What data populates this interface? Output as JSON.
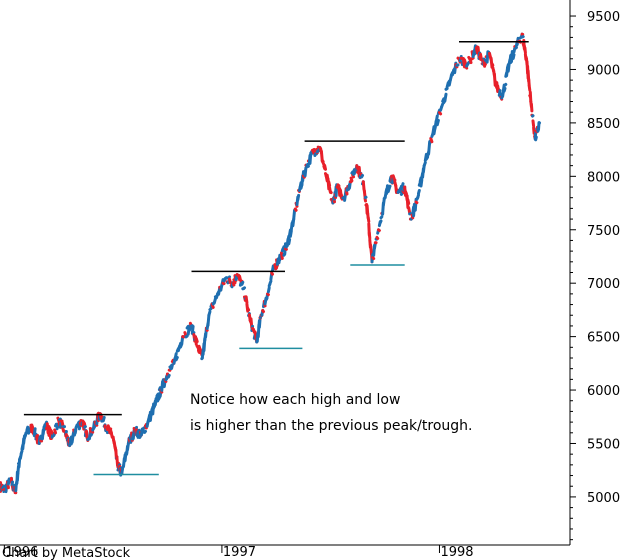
{
  "chart_data": {
    "type": "line",
    "title": "",
    "xlabel": "",
    "ylabel": "",
    "ylim": [
      4550,
      9650
    ],
    "y_ticks": [
      "9500",
      "9000",
      "8500",
      "8000",
      "7500",
      "7000",
      "6500",
      "6000",
      "5500",
      "5000"
    ],
    "y_tick_values": [
      9500,
      9000,
      8500,
      8000,
      7500,
      7000,
      6500,
      6000,
      5500,
      5000
    ],
    "x_ticks": [
      {
        "label": "1996",
        "t": 0.0
      },
      {
        "label": "1997",
        "t": 1.0
      },
      {
        "label": "1998",
        "t": 2.0
      }
    ],
    "xlim": [
      -0.02,
      2.6
    ],
    "legend": "none",
    "grid": false,
    "colors": {
      "up": "#1f6fb0",
      "down": "#e8202a",
      "levels_high": "#000000",
      "levels_low": "#1f8ea0"
    },
    "series": [
      {
        "points": [
          [
            -0.02,
            5100
          ],
          [
            0.0,
            5070
          ],
          [
            0.03,
            5150
          ],
          [
            0.05,
            5040
          ],
          [
            0.07,
            5350
          ],
          [
            0.1,
            5600
          ],
          [
            0.13,
            5650
          ],
          [
            0.16,
            5500
          ],
          [
            0.19,
            5680
          ],
          [
            0.22,
            5560
          ],
          [
            0.25,
            5720
          ],
          [
            0.28,
            5610
          ],
          [
            0.3,
            5480
          ],
          [
            0.33,
            5650
          ],
          [
            0.36,
            5710
          ],
          [
            0.38,
            5560
          ],
          [
            0.41,
            5640
          ],
          [
            0.44,
            5780
          ],
          [
            0.47,
            5650
          ],
          [
            0.5,
            5560
          ],
          [
            0.52,
            5300
          ],
          [
            0.54,
            5220
          ],
          [
            0.57,
            5500
          ],
          [
            0.6,
            5620
          ],
          [
            0.63,
            5580
          ],
          [
            0.66,
            5700
          ],
          [
            0.69,
            5850
          ],
          [
            0.72,
            6000
          ],
          [
            0.75,
            6150
          ],
          [
            0.78,
            6250
          ],
          [
            0.82,
            6500
          ],
          [
            0.86,
            6600
          ],
          [
            0.89,
            6400
          ],
          [
            0.91,
            6300
          ],
          [
            0.94,
            6700
          ],
          [
            0.98,
            6900
          ],
          [
            1.02,
            7050
          ],
          [
            1.05,
            7000
          ],
          [
            1.07,
            7080
          ],
          [
            1.1,
            6950
          ],
          [
            1.13,
            6650
          ],
          [
            1.16,
            6450
          ],
          [
            1.18,
            6700
          ],
          [
            1.21,
            6900
          ],
          [
            1.24,
            7150
          ],
          [
            1.27,
            7250
          ],
          [
            1.3,
            7350
          ],
          [
            1.33,
            7600
          ],
          [
            1.36,
            7900
          ],
          [
            1.39,
            8100
          ],
          [
            1.42,
            8230
          ],
          [
            1.45,
            8270
          ],
          [
            1.48,
            8000
          ],
          [
            1.51,
            7750
          ],
          [
            1.53,
            7900
          ],
          [
            1.56,
            7800
          ],
          [
            1.59,
            7950
          ],
          [
            1.62,
            8100
          ],
          [
            1.65,
            7950
          ],
          [
            1.67,
            7650
          ],
          [
            1.69,
            7200
          ],
          [
            1.72,
            7500
          ],
          [
            1.75,
            7800
          ],
          [
            1.78,
            8000
          ],
          [
            1.81,
            7850
          ],
          [
            1.84,
            7900
          ],
          [
            1.87,
            7600
          ],
          [
            1.9,
            7800
          ],
          [
            1.93,
            8100
          ],
          [
            1.97,
            8400
          ],
          [
            2.01,
            8650
          ],
          [
            2.05,
            8900
          ],
          [
            2.09,
            9100
          ],
          [
            2.13,
            9050
          ],
          [
            2.17,
            9200
          ],
          [
            2.2,
            9050
          ],
          [
            2.23,
            9150
          ],
          [
            2.26,
            8850
          ],
          [
            2.29,
            8750
          ],
          [
            2.32,
            9050
          ],
          [
            2.35,
            9200
          ],
          [
            2.38,
            9330
          ],
          [
            2.4,
            9100
          ],
          [
            2.42,
            8700
          ],
          [
            2.44,
            8350
          ],
          [
            2.46,
            8500
          ]
        ]
      }
    ],
    "levels": [
      {
        "kind": "high",
        "x0": 0.09,
        "x1": 0.54,
        "y": 5770
      },
      {
        "kind": "low",
        "x0": 0.41,
        "x1": 0.71,
        "y": 5210
      },
      {
        "kind": "high",
        "x0": 0.86,
        "x1": 1.29,
        "y": 7110
      },
      {
        "kind": "low",
        "x0": 1.08,
        "x1": 1.37,
        "y": 6390
      },
      {
        "kind": "high",
        "x0": 1.38,
        "x1": 1.84,
        "y": 8330
      },
      {
        "kind": "low",
        "x0": 1.59,
        "x1": 1.84,
        "y": 7170
      },
      {
        "kind": "high",
        "x0": 2.09,
        "x1": 2.41,
        "y": 9260
      }
    ],
    "annotation": {
      "line1": "Notice how each high and low",
      "line2": "is higher than the previous peak/trough."
    },
    "credit": "Chart by MetaStock"
  }
}
